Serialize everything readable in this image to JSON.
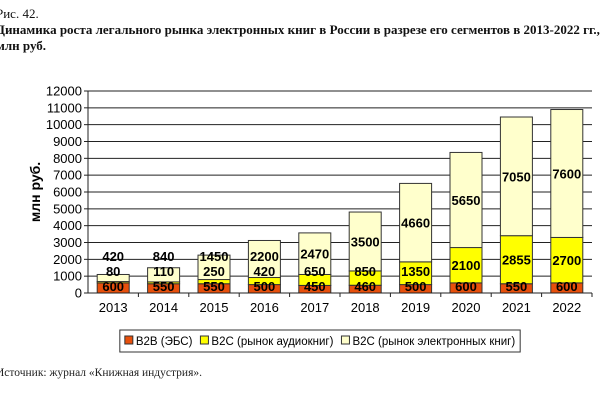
{
  "caption": {
    "figure": "Рис. 42.",
    "title": "Динамика роста легального рынка электронных книг в России в разрезе его сегментов в 2013-2022 гг.,",
    "title_line2": "млн руб."
  },
  "source": "Источник: журнал «Книжная индустрия».",
  "chart_data": {
    "type": "bar",
    "stacked": true,
    "title": "Динамика роста легального рынка электронных книг в России в разрезе его сегментов в 2013-2022 гг., млн руб.",
    "xlabel": "",
    "ylabel": "млн руб.",
    "ylim": [
      0,
      12000
    ],
    "yticks": [
      0,
      1000,
      2000,
      3000,
      4000,
      5000,
      6000,
      7000,
      8000,
      9000,
      10000,
      11000,
      12000
    ],
    "grid": true,
    "legend_position": "bottom",
    "categories": [
      "2013",
      "2014",
      "2015",
      "2016",
      "2017",
      "2018",
      "2019",
      "2020",
      "2021",
      "2022"
    ],
    "series": [
      {
        "name": "B2B (ЭБС)",
        "color": "#e8500c",
        "values": [
          600,
          550,
          550,
          500,
          450,
          460,
          500,
          600,
          550,
          600
        ]
      },
      {
        "name": "B2C (рынок аудиокниг)",
        "color": "#ffff00",
        "values": [
          80,
          110,
          250,
          420,
          650,
          850,
          1350,
          2100,
          2855,
          2700
        ]
      },
      {
        "name": "B2C (рынок электронных книг)",
        "color": "#ffffcc",
        "values": [
          420,
          840,
          1450,
          2200,
          2470,
          3500,
          4660,
          5650,
          7050,
          7600
        ]
      }
    ]
  }
}
